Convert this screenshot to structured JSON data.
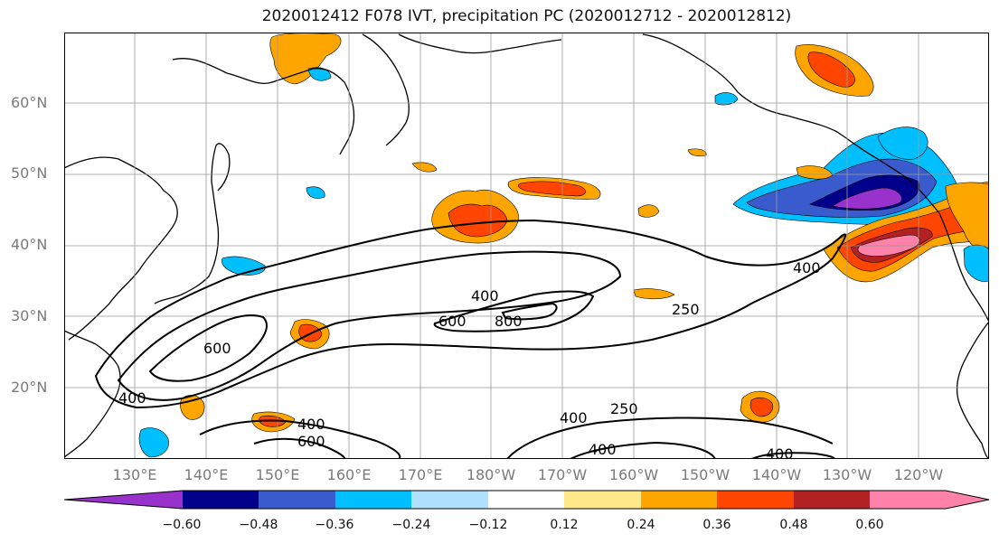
{
  "title": "2020012412 F078 IVT, precipitation PC (2020012712 - 2020012812)",
  "lat_labels": [
    "60°N",
    "50°N",
    "40°N",
    "30°N",
    "20°N"
  ],
  "lon_labels": [
    "130°E",
    "140°E",
    "150°E",
    "160°E",
    "170°E",
    "180°W",
    "170°W",
    "160°W",
    "150°W",
    "140°W",
    "130°W",
    "120°W"
  ],
  "ivt_contour_labels": [
    "400",
    "600",
    "800",
    "250",
    "400",
    "600",
    "400",
    "600",
    "400",
    "250",
    "400",
    "400",
    "400"
  ],
  "colorbar": {
    "ticks": [
      "−0.60",
      "−0.48",
      "−0.36",
      "−0.24",
      "−0.12",
      "0.12",
      "0.24",
      "0.36",
      "0.48",
      "0.60"
    ],
    "colors": [
      "#9932cc",
      "#00008b",
      "#3a5bcd",
      "#00bfff",
      "#b0e2ff",
      "#ffffff",
      "#ffe98a",
      "#ffa500",
      "#ff4500",
      "#b22222",
      "#ff82ab",
      "#ff82ab"
    ]
  }
}
